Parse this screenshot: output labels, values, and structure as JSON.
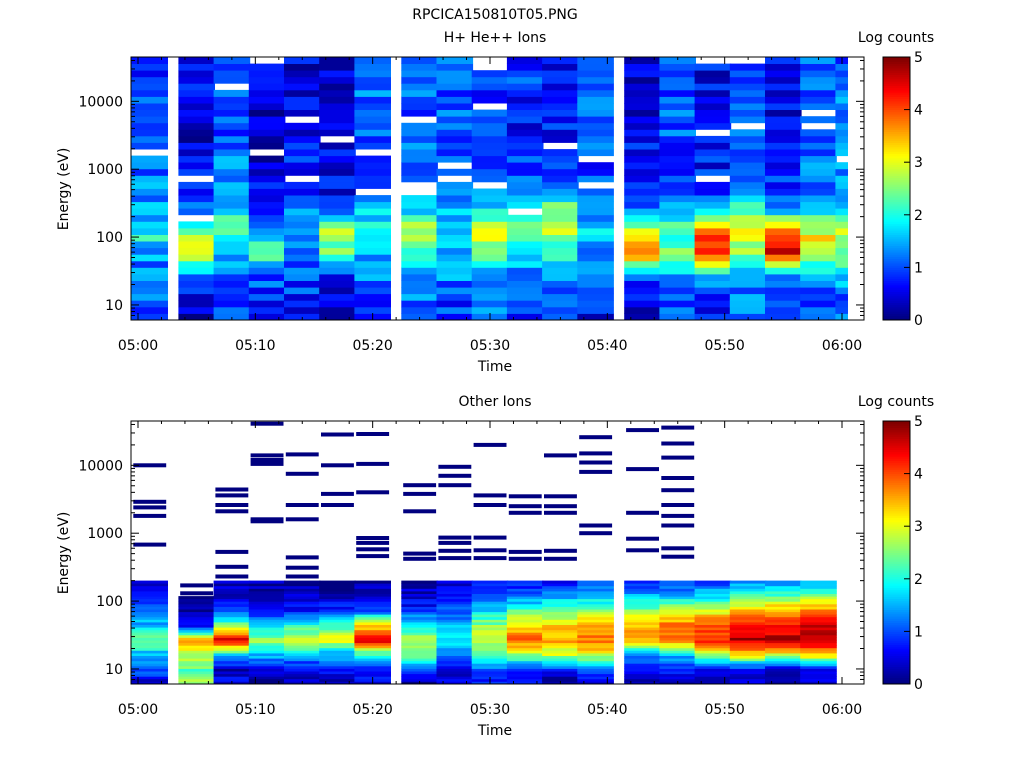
{
  "figure": {
    "title": "RPCICA150810T05.PNG"
  },
  "colormap": [
    "#00007f",
    "#0000ff",
    "#007fff",
    "#00ffff",
    "#7fff7f",
    "#ffff00",
    "#ff7f00",
    "#ff0000",
    "#7f0000"
  ],
  "chart_data": [
    {
      "type": "heatmap",
      "title": "H+ He++ Ions",
      "xlabel": "Time",
      "ylabel": "Energy (eV)",
      "colorbar_label": "Log counts",
      "y_scale": "log",
      "ylim": [
        6,
        45000
      ],
      "x_ticks": [
        "05:00",
        "05:10",
        "05:20",
        "05:30",
        "05:40",
        "05:50",
        "06:00"
      ],
      "y_ticks": [
        10,
        100,
        1000,
        10000
      ],
      "colorbar_ticks": [
        0,
        1,
        2,
        3,
        4,
        5
      ],
      "clim": [
        0,
        5
      ],
      "columns": [
        "05:01",
        "05:05",
        "05:08",
        "05:11",
        "05:14",
        "05:17",
        "05:20",
        "05:24",
        "05:27",
        "05:30",
        "05:33",
        "05:36",
        "05:39",
        "05:43",
        "05:46",
        "05:49",
        "05:52",
        "05:55",
        "05:58",
        "06:01"
      ],
      "energy_profile": [
        [
          0.8,
          1.0,
          1.2,
          1.3,
          2.0,
          1.5,
          1.3,
          1.2,
          1.1,
          1.0,
          1.0,
          0.9,
          0.9
        ],
        [
          0.3,
          0.6,
          0.9,
          3.2,
          2.6,
          1.2,
          0.7,
          0.6,
          0.5,
          0.4,
          0.6,
          0.5,
          0.5
        ],
        [
          0.8,
          1.0,
          1.2,
          1.5,
          2.3,
          1.8,
          1.3,
          1.2,
          1.1,
          1.0,
          1.1,
          1.1,
          1.0
        ],
        [
          0.6,
          0.8,
          1.0,
          2.4,
          1.8,
          1.0,
          0.5,
          0.4,
          0.4,
          0.3,
          0.4,
          0.4,
          0.4
        ],
        [
          0.6,
          0.8,
          1.0,
          1.3,
          1.6,
          1.3,
          0.8,
          0.7,
          0.6,
          0.6,
          0.6,
          0.5,
          0.5
        ],
        [
          0.2,
          0.4,
          0.8,
          2.2,
          2.6,
          0.9,
          0.5,
          0.5,
          0.5,
          0.4,
          0.5,
          0.4,
          0.4
        ],
        [
          0.8,
          1.0,
          1.2,
          1.6,
          2.2,
          1.6,
          1.3,
          1.1,
          1.0,
          1.0,
          1.1,
          1.1,
          1.0
        ],
        [
          0.9,
          1.2,
          1.5,
          1.8,
          2.8,
          1.9,
          1.3,
          1.2,
          1.1,
          1.1,
          1.1,
          1.1,
          1.1
        ],
        [
          0.7,
          1.0,
          1.3,
          1.6,
          1.8,
          1.5,
          1.2,
          1.1,
          1.0,
          1.0,
          1.1,
          1.1,
          1.0
        ],
        [
          1.0,
          1.3,
          1.6,
          2.3,
          2.9,
          2.0,
          1.4,
          1.1,
          1.0,
          0.9,
          0.9,
          0.9,
          0.9
        ],
        [
          0.8,
          1.0,
          1.3,
          1.8,
          2.5,
          2.0,
          1.2,
          0.9,
          0.8,
          0.7,
          0.8,
          0.9,
          0.8
        ],
        [
          0.8,
          1.0,
          1.3,
          1.9,
          2.9,
          2.6,
          1.4,
          0.9,
          0.8,
          0.7,
          0.7,
          0.6,
          0.6
        ],
        [
          0.6,
          0.9,
          1.1,
          1.4,
          1.6,
          1.4,
          1.1,
          1.0,
          1.0,
          1.0,
          1.0,
          0.9,
          0.9
        ],
        [
          0.4,
          0.7,
          1.0,
          3.4,
          3.2,
          1.2,
          0.8,
          0.6,
          0.6,
          0.5,
          0.5,
          0.5,
          0.5
        ],
        [
          0.9,
          1.1,
          1.3,
          2.5,
          2.2,
          1.6,
          1.1,
          1.0,
          1.0,
          1.0,
          1.0,
          0.9,
          0.9
        ],
        [
          0.6,
          0.9,
          1.2,
          4.3,
          3.9,
          1.5,
          0.9,
          0.7,
          0.6,
          0.6,
          0.6,
          0.6,
          0.6
        ],
        [
          1.0,
          1.2,
          1.5,
          2.6,
          3.2,
          2.2,
          1.5,
          1.1,
          1.1,
          1.0,
          1.0,
          1.0,
          1.0
        ],
        [
          0.7,
          1.0,
          1.3,
          4.4,
          4.0,
          1.6,
          1.0,
          0.8,
          0.7,
          0.6,
          0.6,
          0.6,
          0.6
        ],
        [
          0.9,
          1.1,
          1.4,
          2.8,
          3.1,
          1.8,
          1.3,
          1.1,
          1.0,
          1.0,
          1.0,
          1.0,
          1.0
        ],
        [
          1.0,
          1.2,
          1.5,
          2.4,
          2.9,
          2.0,
          1.5,
          1.3,
          1.2,
          1.2,
          1.2,
          1.1,
          1.1
        ]
      ]
    },
    {
      "type": "heatmap",
      "title": "Other Ions",
      "xlabel": "Time",
      "ylabel": "Energy (eV)",
      "colorbar_label": "Log counts",
      "y_scale": "log",
      "ylim": [
        6,
        45000
      ],
      "x_ticks": [
        "05:00",
        "05:10",
        "05:20",
        "05:30",
        "05:40",
        "05:50",
        "06:00"
      ],
      "y_ticks": [
        10,
        100,
        1000,
        10000
      ],
      "colorbar_ticks": [
        0,
        1,
        2,
        3,
        4,
        5
      ],
      "clim": [
        0,
        5
      ],
      "columns": [
        "05:01",
        "05:05",
        "05:08",
        "05:11",
        "05:14",
        "05:17",
        "05:20",
        "05:24",
        "05:27",
        "05:30",
        "05:33",
        "05:36",
        "05:39",
        "05:43",
        "05:46",
        "05:49",
        "05:52",
        "05:55",
        "05:58",
        "06:01"
      ],
      "energy_profile": [
        [
          0.3,
          1.2,
          1.5,
          2.5,
          1.6,
          1.0,
          0.5,
          0.3
        ],
        [
          2.7,
          2.3,
          2.9,
          3.5,
          0.5,
          0.2,
          0.0,
          0.0
        ],
        [
          0.6,
          0.3,
          1.8,
          4.5,
          2.5,
          1.0,
          0.4,
          0.2
        ],
        [
          0.0,
          0.7,
          1.5,
          2.7,
          1.7,
          0.6,
          0.2,
          0.2
        ],
        [
          0.2,
          0.5,
          1.6,
          3.0,
          2.0,
          0.7,
          0.3,
          0.2
        ],
        [
          0.3,
          0.6,
          1.5,
          3.1,
          2.2,
          0.8,
          0.3,
          0.2
        ],
        [
          0.5,
          0.6,
          2.0,
          4.6,
          3.2,
          1.0,
          0.4,
          0.2
        ],
        [
          0.0,
          1.0,
          2.4,
          2.7,
          2.0,
          0.8,
          0.4,
          0.2
        ],
        [
          0.4,
          0.6,
          1.4,
          1.8,
          1.6,
          1.0,
          0.7,
          0.3
        ],
        [
          0.7,
          1.1,
          2.3,
          2.9,
          2.6,
          1.6,
          1.0,
          0.5
        ],
        [
          0.7,
          0.8,
          2.6,
          4.0,
          3.2,
          2.2,
          1.2,
          0.6
        ],
        [
          0.0,
          0.8,
          2.8,
          3.6,
          3.4,
          2.4,
          1.4,
          0.7
        ],
        [
          0.6,
          0.9,
          3.0,
          3.8,
          3.6,
          2.5,
          1.5,
          0.8
        ],
        [
          0.0,
          0.6,
          1.2,
          3.6,
          3.5,
          2.6,
          1.5,
          0.8
        ],
        [
          0.4,
          0.8,
          1.6,
          3.9,
          3.8,
          2.8,
          1.6,
          0.8
        ],
        [
          0.0,
          0.5,
          2.8,
          4.2,
          4.0,
          3.0,
          1.7,
          0.9
        ],
        [
          0.4,
          0.6,
          3.2,
          4.8,
          4.5,
          3.4,
          2.2,
          1.2
        ],
        [
          0.0,
          0.3,
          3.0,
          4.7,
          4.3,
          3.6,
          2.3,
          1.3
        ],
        [
          0.4,
          0.7,
          3.3,
          4.9,
          4.6,
          3.7,
          2.4,
          1.4
        ],
        [
          0.0,
          0.0,
          0.0,
          0.0,
          0.0,
          0.0,
          0.0,
          0.0
        ]
      ],
      "sparse_lines_eV": [
        [
          10000,
          2900,
          2400,
          1800,
          680
        ],
        [
          170,
          130
        ],
        [
          4400,
          3600,
          2600,
          2100,
          530,
          320,
          230
        ],
        [
          41000,
          14000,
          12000,
          10500,
          1600,
          1500
        ],
        [
          14500,
          7500,
          2600,
          1600,
          440,
          310,
          230
        ],
        [
          28500,
          10000,
          3800,
          2600
        ],
        [
          29000,
          10500,
          4000,
          850,
          720,
          580,
          460
        ],
        [
          5100,
          3800,
          2100,
          500,
          420
        ],
        [
          9500,
          7000,
          5100,
          860,
          720,
          550,
          430
        ],
        [
          20000,
          3600,
          2600,
          860,
          560,
          430
        ],
        [
          3500,
          2500,
          2000,
          530,
          420
        ],
        [
          14000,
          3500,
          2500,
          2000,
          550,
          420
        ],
        [
          26000,
          15000,
          11000,
          8000,
          1300,
          1000
        ],
        [
          33000,
          8800,
          2000,
          830,
          560
        ],
        [
          36000,
          21000,
          13000,
          6500,
          4300,
          2600,
          1800,
          1300,
          600,
          450
        ]
      ]
    }
  ]
}
